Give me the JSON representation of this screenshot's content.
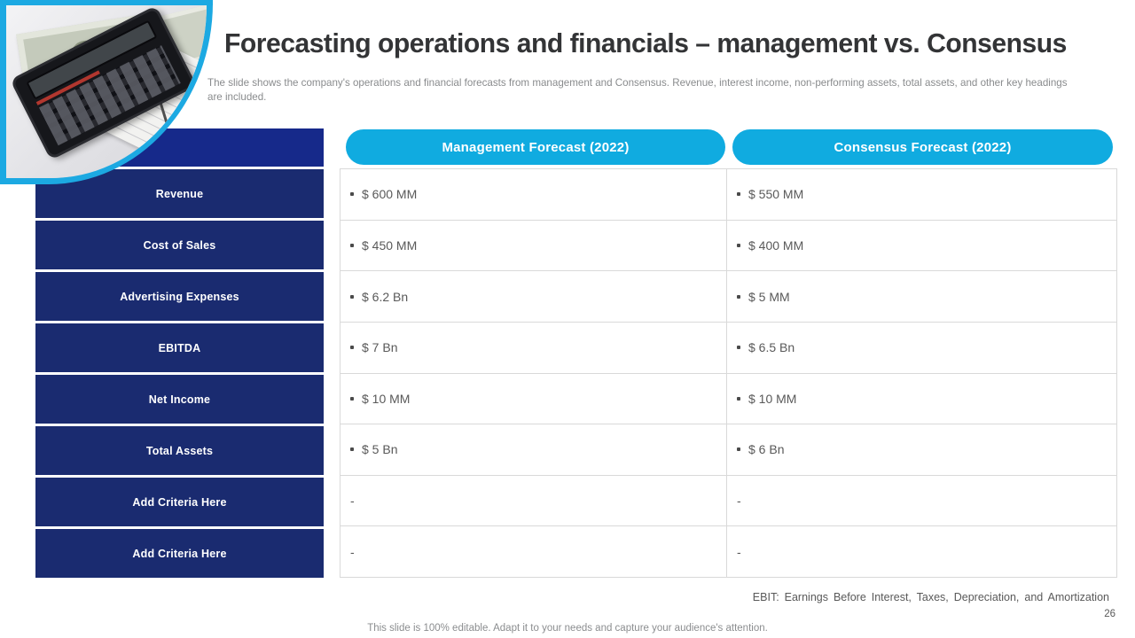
{
  "slide": {
    "title": "Forecasting operations and financials – management vs. Consensus",
    "subtitle": "The slide shows the company's operations and financial forecasts from management and Consensus. Revenue, interest income, non-performing assets, total assets, and other key headings are included.",
    "footnote": "EBIT: Earnings Before Interest, Taxes, Depreciation, and Amortization",
    "editable_note": "This slide is 100% editable. Adapt it to your needs and capture your audience's attention.",
    "page_number": "26"
  },
  "table": {
    "columns": [
      "Management Forecast (2022)",
      "Consensus Forecast (2022)"
    ],
    "rows": [
      {
        "label": "Revenue",
        "management": "$ 600 MM",
        "consensus": "$ 550 MM",
        "bullet": true
      },
      {
        "label": "Cost of Sales",
        "management": "$ 450 MM",
        "consensus": "$ 400 MM",
        "bullet": true
      },
      {
        "label": "Advertising Expenses",
        "management": "$ 6.2 Bn",
        "consensus": "$ 5 MM",
        "bullet": true
      },
      {
        "label": "EBITDA",
        "management": "$ 7 Bn",
        "consensus": "$ 6.5 Bn",
        "bullet": true
      },
      {
        "label": "Net Income",
        "management": "$ 10 MM",
        "consensus": "$ 10 MM",
        "bullet": true
      },
      {
        "label": "Total Assets",
        "management": "$ 5 Bn",
        "consensus": "$ 6 Bn",
        "bullet": true
      },
      {
        "label": "Add Criteria Here",
        "management": "-",
        "consensus": "-",
        "bullet": false
      },
      {
        "label": "Add Criteria Here",
        "management": "-",
        "consensus": "-",
        "bullet": false
      }
    ]
  },
  "colors": {
    "row_header_navy": "#1a2b70",
    "blank_header_navy": "#16298a",
    "pill_cyan": "#10abe0",
    "photo_ring_cyan": "#1ca9e2",
    "cell_border_gray": "#d9d9d9",
    "value_text_gray": "#595959"
  }
}
